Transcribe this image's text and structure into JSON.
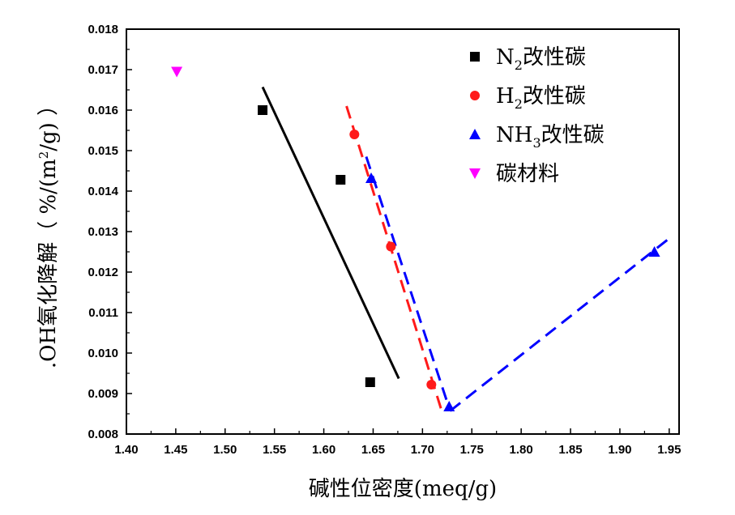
{
  "chart_data": {
    "type": "scatter",
    "title": "",
    "xlabel": "碱性位密度(meq/g)",
    "ylabel_parts": {
      "prefix": ".OH氧化降解（ %/(m",
      "sup": "2",
      "suffix": "/g) ）"
    },
    "xlim": [
      1.4,
      1.96
    ],
    "ylim": [
      0.008,
      0.018
    ],
    "xticks": [
      "1.40",
      "1.45",
      "1.50",
      "1.55",
      "1.60",
      "1.65",
      "1.70",
      "1.75",
      "1.80",
      "1.85",
      "1.90",
      "1.95"
    ],
    "yticks": [
      "0.008",
      "0.009",
      "0.010",
      "0.011",
      "0.012",
      "0.013",
      "0.014",
      "0.015",
      "0.016",
      "0.017",
      "0.018"
    ],
    "legend_position": "top-right",
    "series": [
      {
        "name": "N2改性碳",
        "label_main": "N",
        "label_sub": "2",
        "label_rest": "改性碳",
        "marker": "square",
        "color": "#000000",
        "points": [
          [
            1.538,
            0.016
          ],
          [
            1.617,
            0.01428
          ],
          [
            1.647,
            0.00928
          ]
        ],
        "fit_lines": [
          {
            "x": [
              1.538,
              1.676
            ],
            "y": [
              0.01657,
              0.00937
            ],
            "dash": "solid"
          }
        ]
      },
      {
        "name": "H2改性碳",
        "label_main": "H",
        "label_sub": "2",
        "label_rest": "改性碳",
        "marker": "circle",
        "color": "#ff1a1a",
        "points": [
          [
            1.631,
            0.0154
          ],
          [
            1.668,
            0.01263
          ],
          [
            1.709,
            0.00922
          ]
        ],
        "fit_lines": [
          {
            "x": [
              1.623,
              1.72
            ],
            "y": [
              0.0161,
              0.00853
            ],
            "dash": "dashed"
          }
        ]
      },
      {
        "name": "NH3改性碳",
        "label_main": "NH",
        "label_sub": "3",
        "label_rest": "改性碳",
        "marker": "triangle-up",
        "color": "#0000ff",
        "points": [
          [
            1.648,
            0.01432
          ],
          [
            1.727,
            0.00868
          ],
          [
            1.935,
            0.0125
          ]
        ],
        "fit_lines": [
          {
            "x": [
              1.643,
              1.728
            ],
            "y": [
              0.01485,
              0.00857
            ],
            "dash": "dashed"
          },
          {
            "x": [
              1.728,
              1.952
            ],
            "y": [
              0.00857,
              0.01287
            ],
            "dash": "dashed"
          }
        ]
      },
      {
        "name": "碳材料",
        "label_main": "碳材料",
        "label_sub": "",
        "label_rest": "",
        "marker": "triangle-down",
        "color": "#ff00ff",
        "points": [
          [
            1.451,
            0.01695
          ]
        ],
        "fit_lines": []
      }
    ]
  }
}
